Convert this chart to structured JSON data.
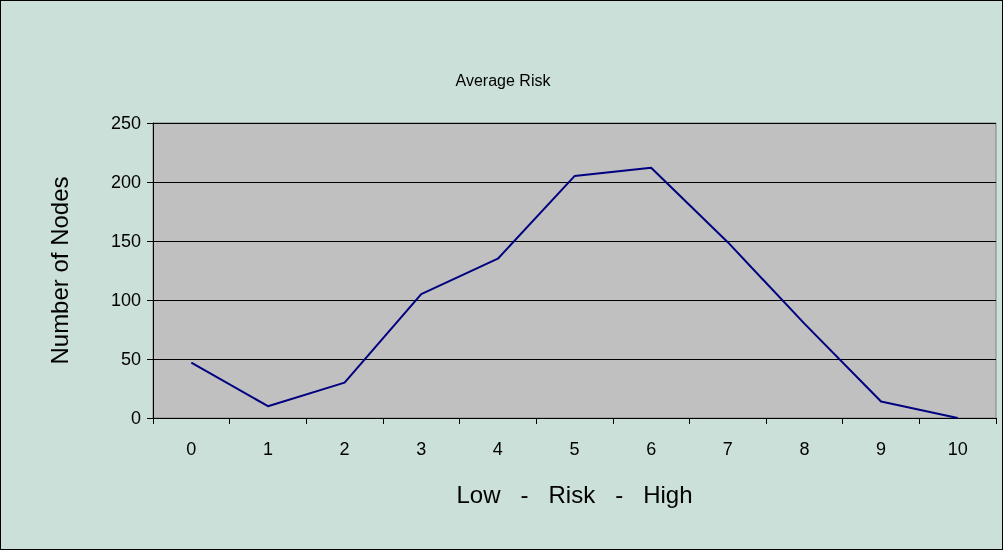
{
  "chart_data": {
    "type": "line",
    "title": "Average Risk",
    "xlabel": "Low   -   Risk   -   High",
    "ylabel": "Number of Nodes",
    "categories": [
      "0",
      "1",
      "2",
      "3",
      "4",
      "5",
      "6",
      "7",
      "8",
      "9",
      "10"
    ],
    "series": [
      {
        "color": "#000080",
        "values": [
          47,
          10,
          30,
          105,
          135,
          205,
          212,
          149,
          80,
          14,
          0
        ]
      }
    ],
    "ylim": [
      0,
      250
    ],
    "yticks": [
      0,
      50,
      100,
      150,
      200,
      250
    ],
    "grid": "y",
    "marker": "none",
    "line_style": "solid"
  }
}
